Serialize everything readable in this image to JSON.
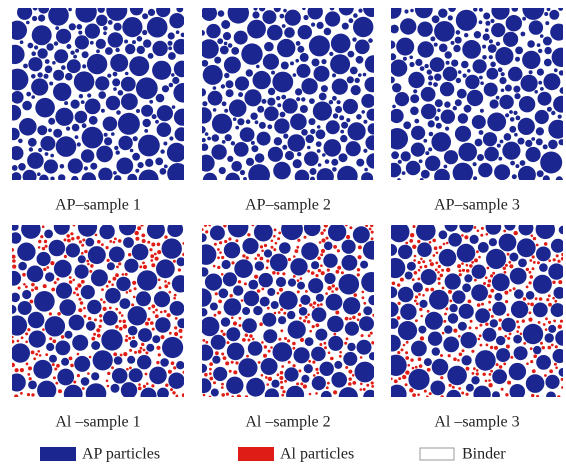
{
  "panels": [
    {
      "label": "AP–sample 1"
    },
    {
      "label": "AP–sample 2"
    },
    {
      "label": "AP–sample 3"
    },
    {
      "label": "Al –sample 1"
    },
    {
      "label": "Al –sample 2"
    },
    {
      "label": "Al –sample 3"
    }
  ],
  "legend": [
    {
      "label": "AP particles"
    },
    {
      "label": "Al particles"
    },
    {
      "label": "Binder"
    }
  ]
}
